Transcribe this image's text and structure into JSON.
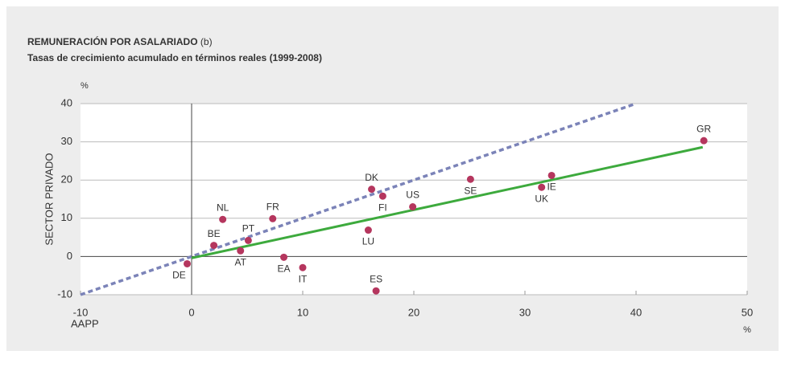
{
  "chart_data": {
    "type": "scatter",
    "title": "REMUNERACIÓN POR ASALARIADO",
    "title_note": "(b)",
    "subtitle": "Tasas de crecimiento acumulado en términos reales (1999-2008)",
    "y_unit": "%",
    "y_label": "SECTOR PRIVADO",
    "x_label": "AAPP",
    "x_unit": "%",
    "point_labels": [
      "DE",
      "BE",
      "NL",
      "PT",
      "AT",
      "FR",
      "EA",
      "IT",
      "ES",
      "LU",
      "DK",
      "FI",
      "US",
      "SE",
      "UK",
      "IE",
      "GR"
    ],
    "x": [
      -0.4,
      2.0,
      2.8,
      5.1,
      4.4,
      7.3,
      8.3,
      10.0,
      16.6,
      15.9,
      16.2,
      17.2,
      19.9,
      25.1,
      31.5,
      32.4,
      46.1
    ],
    "values": [
      -1.9,
      2.9,
      9.7,
      4.2,
      1.5,
      9.9,
      -0.2,
      -2.9,
      -9.0,
      6.9,
      17.6,
      15.8,
      13.0,
      20.2,
      18.1,
      21.2,
      30.3
    ],
    "color": "#b5365e",
    "reference_lines": [
      {
        "x": [
          -10,
          40
        ],
        "y": [
          -10,
          40
        ],
        "color": "#7b83b8",
        "style": "dashed"
      },
      {
        "x": [
          0,
          46
        ],
        "y": [
          -0.4,
          28.6
        ],
        "color": "#3daa3d",
        "style": "solid"
      }
    ],
    "xlim": [
      -10,
      50
    ],
    "xticks": [
      -10,
      0,
      10,
      20,
      30,
      40,
      50
    ],
    "ylim": [
      -10,
      40
    ],
    "yticks": [
      -10,
      0,
      10,
      20,
      30,
      40
    ],
    "grid": true
  }
}
